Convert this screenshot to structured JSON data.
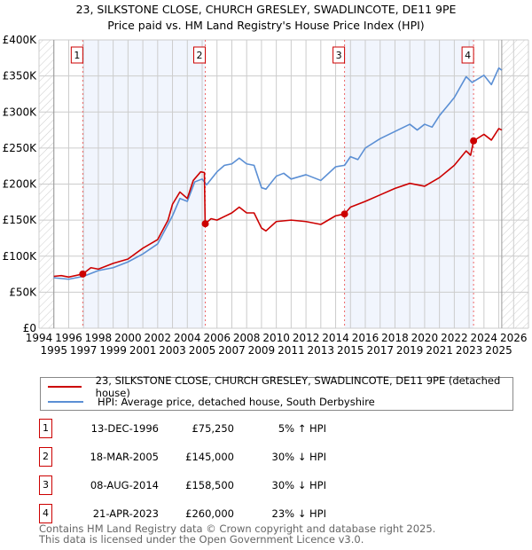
{
  "chart_data": {
    "type": "line",
    "title": "23, SILKSTONE CLOSE, CHURCH GRESLEY, SWADLINCOTE, DE11 9PE",
    "subtitle": "Price paid vs. HM Land Registry's House Price Index (HPI)",
    "xlim": [
      1994,
      2027
    ],
    "ylim": [
      0,
      400000
    ],
    "yticks": [
      {
        "v": 0,
        "label": "£0"
      },
      {
        "v": 50000,
        "label": "£50K"
      },
      {
        "v": 100000,
        "label": "£100K"
      },
      {
        "v": 150000,
        "label": "£150K"
      },
      {
        "v": 200000,
        "label": "£200K"
      },
      {
        "v": 250000,
        "label": "£250K"
      },
      {
        "v": 300000,
        "label": "£300K"
      },
      {
        "v": 350000,
        "label": "£350K"
      },
      {
        "v": 400000,
        "label": "£400K"
      }
    ],
    "xticks": [
      "1994",
      "1995",
      "1996",
      "1997",
      "1998",
      "1999",
      "2000",
      "2001",
      "2002",
      "2003",
      "2004",
      "2005",
      "2006",
      "2007",
      "2008",
      "2009",
      "2010",
      "2011",
      "2012",
      "2013",
      "2014",
      "2015",
      "2016",
      "2017",
      "2018",
      "2019",
      "2020",
      "2021",
      "2022",
      "2023",
      "2024",
      "2025",
      "2026"
    ],
    "data_end": 2025.2,
    "series": [
      {
        "name": "23, SILKSTONE CLOSE, CHURCH GRESLEY, SWADLINCOTE, DE11 9PE (detached house)",
        "color": "#cc0000",
        "points": [
          [
            1995,
            72
          ],
          [
            1995.5,
            73
          ],
          [
            1996,
            71
          ],
          [
            1996.95,
            75.25
          ],
          [
            1997.5,
            84
          ],
          [
            1998,
            82
          ],
          [
            1999,
            90
          ],
          [
            2000,
            96
          ],
          [
            2001,
            111
          ],
          [
            2002,
            123
          ],
          [
            2002.7,
            150
          ],
          [
            2003,
            172
          ],
          [
            2003.5,
            189
          ],
          [
            2004,
            180
          ],
          [
            2004.4,
            205
          ],
          [
            2004.9,
            217
          ],
          [
            2005.15,
            216
          ],
          [
            2005.2,
            148
          ],
          [
            2005.21,
            145
          ],
          [
            2005.6,
            152
          ],
          [
            2006,
            150
          ],
          [
            2007,
            160
          ],
          [
            2007.5,
            168
          ],
          [
            2008,
            160
          ],
          [
            2008.5,
            160
          ],
          [
            2009,
            139
          ],
          [
            2009.3,
            135
          ],
          [
            2010,
            148
          ],
          [
            2011,
            150
          ],
          [
            2012,
            148
          ],
          [
            2013,
            144
          ],
          [
            2014,
            156
          ],
          [
            2014.6,
            158.5
          ],
          [
            2015,
            168
          ],
          [
            2016,
            176
          ],
          [
            2017,
            185
          ],
          [
            2018,
            194
          ],
          [
            2019,
            201
          ],
          [
            2020,
            197
          ],
          [
            2021,
            209
          ],
          [
            2022,
            226
          ],
          [
            2022.8,
            246
          ],
          [
            2023.1,
            240
          ],
          [
            2023.3,
            260
          ],
          [
            2024,
            269
          ],
          [
            2024.5,
            261
          ],
          [
            2025,
            277
          ],
          [
            2025.2,
            275
          ]
        ]
      },
      {
        "name": "HPI: Average price, detached house, South Derbyshire",
        "color": "#5b8fd4",
        "points": [
          [
            1995,
            70
          ],
          [
            1996,
            68
          ],
          [
            1997,
            72
          ],
          [
            1998,
            80
          ],
          [
            1999,
            84
          ],
          [
            2000,
            92
          ],
          [
            2001,
            103
          ],
          [
            2002,
            117
          ],
          [
            2003,
            156
          ],
          [
            2003.5,
            180
          ],
          [
            2004,
            176
          ],
          [
            2004.5,
            203
          ],
          [
            2005,
            207
          ],
          [
            2005.3,
            199
          ],
          [
            2006,
            217
          ],
          [
            2006.5,
            226
          ],
          [
            2007,
            228
          ],
          [
            2007.5,
            236
          ],
          [
            2008,
            228
          ],
          [
            2008.5,
            226
          ],
          [
            2009,
            195
          ],
          [
            2009.3,
            193
          ],
          [
            2010,
            211
          ],
          [
            2010.5,
            215
          ],
          [
            2011,
            207
          ],
          [
            2012,
            213
          ],
          [
            2013,
            205
          ],
          [
            2014,
            224
          ],
          [
            2014.6,
            226
          ],
          [
            2015,
            238
          ],
          [
            2015.5,
            234
          ],
          [
            2016,
            250
          ],
          [
            2017,
            263
          ],
          [
            2018,
            273
          ],
          [
            2019,
            283
          ],
          [
            2019.5,
            275
          ],
          [
            2020,
            283
          ],
          [
            2020.5,
            279
          ],
          [
            2021,
            295
          ],
          [
            2022,
            320
          ],
          [
            2022.8,
            349
          ],
          [
            2023.2,
            341
          ],
          [
            2024,
            351
          ],
          [
            2024.5,
            338
          ],
          [
            2025,
            361
          ],
          [
            2025.2,
            358
          ]
        ]
      }
    ],
    "sales": [
      {
        "id": "1",
        "x": 1996.95,
        "price": 75250,
        "date": "13-DEC-1996",
        "price_label": "£75,250",
        "hpi": "5% ↑ HPI"
      },
      {
        "id": "2",
        "x": 2005.21,
        "price": 145000,
        "date": "18-MAR-2005",
        "price_label": "£145,000",
        "hpi": "30% ↓ HPI"
      },
      {
        "id": "3",
        "x": 2014.6,
        "price": 158500,
        "date": "08-AUG-2014",
        "price_label": "£158,500",
        "hpi": "30% ↓ HPI"
      },
      {
        "id": "4",
        "x": 2023.3,
        "price": 260000,
        "date": "21-APR-2023",
        "price_label": "£260,000",
        "hpi": "23% ↓ HPI"
      }
    ]
  },
  "footer": {
    "line1": "Contains HM Land Registry data © Crown copyright and database right 2025.",
    "line2": "This data is licensed under the Open Government Licence v3.0."
  }
}
